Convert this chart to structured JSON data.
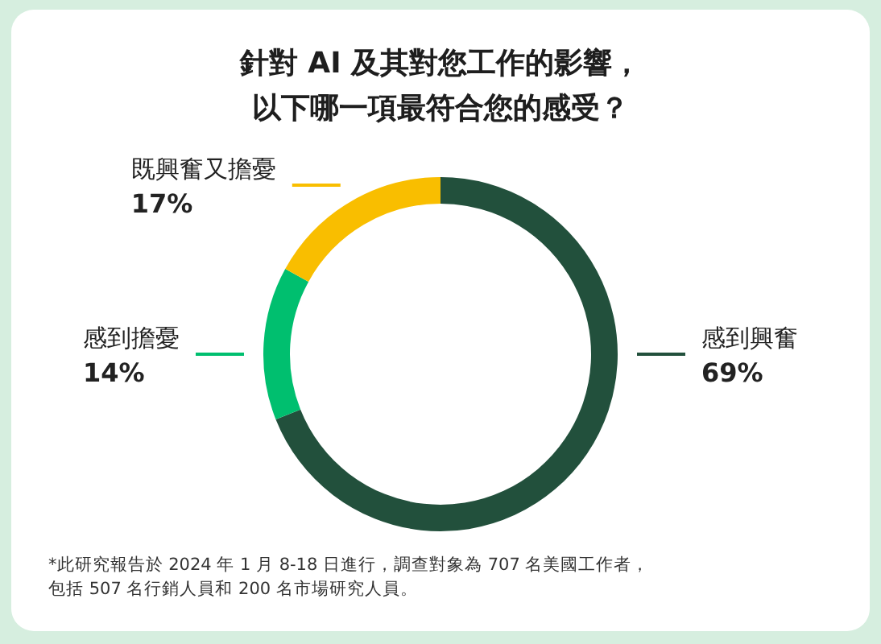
{
  "chart_data": {
    "type": "donut",
    "title": "針對 AI 及其對您工作的影響，以下哪一項最符合您的感受？",
    "categories": [
      "感到興奮",
      "感到擔憂",
      "既興奮又擔憂"
    ],
    "values": [
      69,
      14,
      17
    ],
    "colors": [
      "#22503c",
      "#00bf6f",
      "#f9be00"
    ],
    "value_labels": [
      "69%",
      "14%",
      "17%"
    ],
    "legend": false,
    "annotations": [
      "*此研究報告於 2024 年 1 月 8-18 日進行，調查對象為 707 名美國工作者，包括 507 名行銷人員和 200 名市場研究人員。"
    ]
  }
}
